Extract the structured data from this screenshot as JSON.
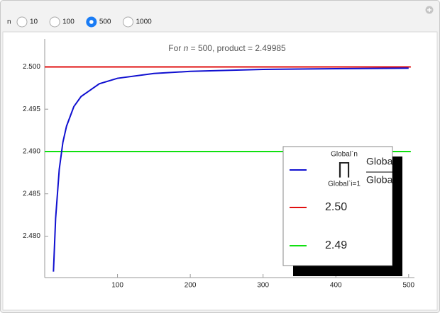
{
  "controls": {
    "label": "n",
    "options": [
      "10",
      "100",
      "500",
      "1000"
    ],
    "selected": 2
  },
  "chart_data": {
    "type": "line",
    "title_prefix": "For ",
    "title_var": "n",
    "title_suffix": " = 500, product = 2.49985",
    "xlim": [
      0,
      508
    ],
    "ylim": [
      2.4751,
      2.5033
    ],
    "xticks": [
      100,
      200,
      300,
      400,
      500
    ],
    "yticks": [
      {
        "value": 2.48,
        "label": "2.480"
      },
      {
        "value": 2.485,
        "label": "2.485"
      },
      {
        "value": 2.49,
        "label": "2.490"
      },
      {
        "value": 2.495,
        "label": "2.495"
      },
      {
        "value": 2.5,
        "label": "2.500"
      }
    ],
    "legend_formula": {
      "upper": "Global`n",
      "symbol": "∏",
      "lower": "Global`i=1",
      "numerator": "Globa",
      "denominator": "Globa"
    },
    "series": [
      {
        "color": "#1010d0",
        "x": [
          12,
          15,
          20,
          25,
          30,
          40,
          50,
          75,
          100,
          150,
          200,
          300,
          400,
          500
        ],
        "values": [
          2.4758,
          2.4821,
          2.4879,
          2.4911,
          2.493,
          2.4953,
          2.4965,
          2.498,
          2.49865,
          2.49922,
          2.49947,
          2.4997,
          2.49979,
          2.49985
        ]
      },
      {
        "name": "2.50",
        "color": "#e01010",
        "x": [
          0,
          503
        ],
        "values": [
          2.5,
          2.5
        ]
      },
      {
        "name": "2.49",
        "color": "#10e010",
        "x": [
          0,
          503
        ],
        "values": [
          2.49,
          2.49
        ]
      }
    ]
  }
}
